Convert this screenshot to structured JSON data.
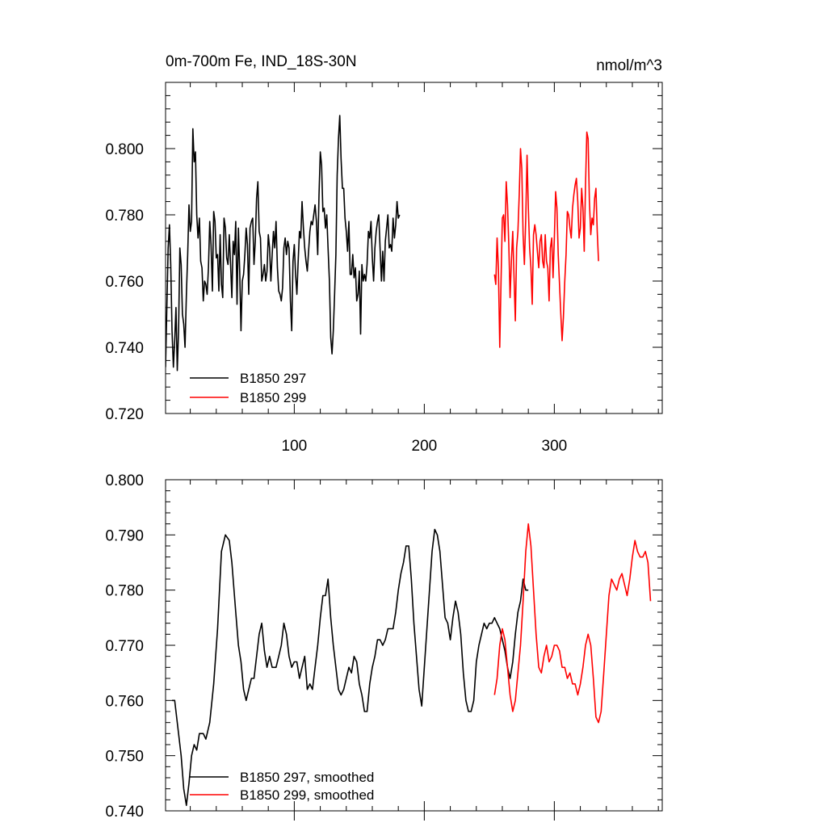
{
  "chart_data": [
    {
      "type": "line",
      "title": "0m-700m Fe, IND_18S-30N",
      "units": "nmol/m^3",
      "xlim": [
        1,
        383
      ],
      "ylim": [
        0.72,
        0.82
      ],
      "x_ticks": [
        100,
        200,
        300
      ],
      "x_tick_labels": [
        "100",
        "200",
        "300"
      ],
      "y_ticks": [
        0.72,
        0.74,
        0.76,
        0.78,
        0.8
      ],
      "y_tick_labels": [
        "0.720",
        "0.740",
        "0.760",
        "0.780",
        "0.800"
      ],
      "legend_position": "bottom-left",
      "series": [
        {
          "name": "B1850 297",
          "color": "#000000",
          "x_start": 1,
          "values": [
            0.734,
            0.752,
            0.77,
            0.777,
            0.765,
            0.745,
            0.734,
            0.742,
            0.752,
            0.733,
            0.745,
            0.77,
            0.765,
            0.75,
            0.747,
            0.74,
            0.756,
            0.768,
            0.783,
            0.775,
            0.778,
            0.806,
            0.796,
            0.799,
            0.78,
            0.773,
            0.779,
            0.766,
            0.764,
            0.754,
            0.76,
            0.759,
            0.756,
            0.764,
            0.778,
            0.771,
            0.757,
            0.781,
            0.778,
            0.767,
            0.768,
            0.757,
            0.774,
            0.759,
            0.755,
            0.779,
            0.776,
            0.767,
            0.765,
            0.774,
            0.765,
            0.755,
            0.772,
            0.768,
            0.778,
            0.753,
            0.776,
            0.763,
            0.745,
            0.76,
            0.762,
            0.768,
            0.776,
            0.771,
            0.756,
            0.776,
            0.778,
            0.779,
            0.765,
            0.772,
            0.785,
            0.79,
            0.775,
            0.773,
            0.76,
            0.762,
            0.765,
            0.76,
            0.763,
            0.774,
            0.77,
            0.76,
            0.768,
            0.775,
            0.77,
            0.778,
            0.764,
            0.757,
            0.756,
            0.754,
            0.758,
            0.77,
            0.773,
            0.768,
            0.772,
            0.77,
            0.754,
            0.745,
            0.766,
            0.771,
            0.762,
            0.756,
            0.766,
            0.775,
            0.773,
            0.784,
            0.776,
            0.77,
            0.766,
            0.763,
            0.769,
            0.775,
            0.778,
            0.777,
            0.78,
            0.783,
            0.778,
            0.768,
            0.786,
            0.799,
            0.795,
            0.781,
            0.782,
            0.776,
            0.78,
            0.77,
            0.76,
            0.743,
            0.738,
            0.745,
            0.756,
            0.768,
            0.792,
            0.803,
            0.81,
            0.797,
            0.788,
            0.788,
            0.779,
            0.775,
            0.769,
            0.778,
            0.762,
            0.762,
            0.768,
            0.761,
            0.764,
            0.754,
            0.756,
            0.763,
            0.744,
            0.765,
            0.76,
            0.762,
            0.76,
            0.765,
            0.775,
            0.773,
            0.778,
            0.767,
            0.76,
            0.77,
            0.775,
            0.778,
            0.78,
            0.77,
            0.76,
            0.769,
            0.76,
            0.772,
            0.776,
            0.78,
            0.77,
            0.771,
            0.769,
            0.779,
            0.773,
            0.777,
            0.784,
            0.779,
            0.78
          ]
        },
        {
          "name": "B1850 299",
          "color": "#ff0000",
          "x_start": 254,
          "values": [
            0.762,
            0.759,
            0.773,
            0.764,
            0.74,
            0.76,
            0.779,
            0.78,
            0.772,
            0.79,
            0.783,
            0.771,
            0.755,
            0.766,
            0.775,
            0.761,
            0.748,
            0.77,
            0.775,
            0.786,
            0.8,
            0.794,
            0.774,
            0.765,
            0.779,
            0.798,
            0.782,
            0.77,
            0.764,
            0.753,
            0.774,
            0.777,
            0.774,
            0.769,
            0.764,
            0.772,
            0.774,
            0.766,
            0.764,
            0.774,
            0.766,
            0.764,
            0.754,
            0.77,
            0.773,
            0.761,
            0.773,
            0.787,
            0.782,
            0.768,
            0.759,
            0.75,
            0.742,
            0.749,
            0.76,
            0.768,
            0.781,
            0.78,
            0.776,
            0.773,
            0.782,
            0.786,
            0.789,
            0.791,
            0.784,
            0.773,
            0.776,
            0.788,
            0.782,
            0.769,
            0.789,
            0.805,
            0.803,
            0.784,
            0.774,
            0.779,
            0.777,
            0.785,
            0.788,
            0.775,
            0.766
          ]
        }
      ]
    },
    {
      "type": "line",
      "title": "",
      "xlim": [
        1,
        383
      ],
      "ylim": [
        0.74,
        0.8
      ],
      "x_ticks": [
        100,
        200,
        300
      ],
      "y_ticks": [
        0.74,
        0.75,
        0.76,
        0.77,
        0.78,
        0.79,
        0.8
      ],
      "y_tick_labels": [
        "0.740",
        "0.750",
        "0.760",
        "0.770",
        "0.780",
        "0.790",
        "0.800"
      ],
      "legend_position": "bottom-left",
      "series": [
        {
          "name": "B1850 297, smoothed",
          "color": "#000000",
          "points": [
            [
              6,
              0.76
            ],
            [
              8,
              0.76
            ],
            [
              10,
              0.756
            ],
            [
              13,
              0.75
            ],
            [
              15,
              0.744
            ],
            [
              17,
              0.741
            ],
            [
              19,
              0.745
            ],
            [
              21,
              0.75
            ],
            [
              23,
              0.752
            ],
            [
              25,
              0.751
            ],
            [
              27,
              0.754
            ],
            [
              30,
              0.754
            ],
            [
              32,
              0.753
            ],
            [
              35,
              0.756
            ],
            [
              38,
              0.763
            ],
            [
              41,
              0.773
            ],
            [
              44,
              0.787
            ],
            [
              47,
              0.79
            ],
            [
              50,
              0.789
            ],
            [
              52,
              0.785
            ],
            [
              55,
              0.776
            ],
            [
              57,
              0.77
            ],
            [
              59,
              0.767
            ],
            [
              61,
              0.762
            ],
            [
              63,
              0.76
            ],
            [
              65,
              0.762
            ],
            [
              67,
              0.764
            ],
            [
              69,
              0.764
            ],
            [
              71,
              0.768
            ],
            [
              73,
              0.772
            ],
            [
              75,
              0.774
            ],
            [
              77,
              0.769
            ],
            [
              79,
              0.766
            ],
            [
              81,
              0.768
            ],
            [
              83,
              0.766
            ],
            [
              86,
              0.766
            ],
            [
              88,
              0.768
            ],
            [
              90,
              0.77
            ],
            [
              92,
              0.774
            ],
            [
              94,
              0.772
            ],
            [
              96,
              0.768
            ],
            [
              98,
              0.766
            ],
            [
              100,
              0.767
            ],
            [
              102,
              0.767
            ],
            [
              104,
              0.764
            ],
            [
              106,
              0.766
            ],
            [
              108,
              0.768
            ],
            [
              110,
              0.762
            ],
            [
              112,
              0.763
            ],
            [
              114,
              0.762
            ],
            [
              116,
              0.766
            ],
            [
              118,
              0.77
            ],
            [
              120,
              0.775
            ],
            [
              122,
              0.779
            ],
            [
              124,
              0.779
            ],
            [
              126,
              0.782
            ],
            [
              128,
              0.775
            ],
            [
              130,
              0.77
            ],
            [
              132,
              0.766
            ],
            [
              134,
              0.762
            ],
            [
              136,
              0.761
            ],
            [
              138,
              0.762
            ],
            [
              140,
              0.764
            ],
            [
              142,
              0.766
            ],
            [
              144,
              0.765
            ],
            [
              146,
              0.768
            ],
            [
              148,
              0.767
            ],
            [
              150,
              0.763
            ],
            [
              152,
              0.761
            ],
            [
              154,
              0.758
            ],
            [
              156,
              0.758
            ],
            [
              158,
              0.763
            ],
            [
              160,
              0.766
            ],
            [
              162,
              0.768
            ],
            [
              164,
              0.771
            ],
            [
              166,
              0.771
            ],
            [
              168,
              0.77
            ],
            [
              170,
              0.771
            ],
            [
              172,
              0.773
            ],
            [
              174,
              0.773
            ],
            [
              176,
              0.773
            ],
            [
              178,
              0.776
            ],
            [
              180,
              0.78
            ],
            [
              182,
              0.783
            ],
            [
              184,
              0.785
            ],
            [
              186,
              0.788
            ],
            [
              188,
              0.788
            ],
            [
              190,
              0.782
            ],
            [
              192,
              0.774
            ],
            [
              194,
              0.768
            ],
            [
              196,
              0.762
            ],
            [
              198,
              0.759
            ],
            [
              200,
              0.766
            ],
            [
              202,
              0.773
            ],
            [
              204,
              0.78
            ],
            [
              206,
              0.787
            ],
            [
              208,
              0.791
            ],
            [
              210,
              0.79
            ],
            [
              212,
              0.787
            ],
            [
              214,
              0.781
            ],
            [
              216,
              0.775
            ],
            [
              218,
              0.774
            ],
            [
              220,
              0.771
            ],
            [
              222,
              0.775
            ],
            [
              224,
              0.778
            ],
            [
              226,
              0.776
            ],
            [
              228,
              0.772
            ],
            [
              230,
              0.765
            ],
            [
              232,
              0.76
            ],
            [
              234,
              0.758
            ],
            [
              236,
              0.758
            ],
            [
              238,
              0.76
            ],
            [
              240,
              0.767
            ],
            [
              242,
              0.77
            ],
            [
              244,
              0.772
            ],
            [
              246,
              0.774
            ],
            [
              248,
              0.773
            ],
            [
              250,
              0.774
            ],
            [
              252,
              0.774
            ],
            [
              254,
              0.775
            ],
            [
              256,
              0.774
            ],
            [
              258,
              0.773
            ],
            [
              260,
              0.771
            ],
            [
              262,
              0.769
            ],
            [
              264,
              0.766
            ],
            [
              266,
              0.764
            ],
            [
              268,
              0.767
            ],
            [
              270,
              0.772
            ],
            [
              272,
              0.776
            ],
            [
              274,
              0.778
            ],
            [
              276,
              0.782
            ],
            [
              278,
              0.78
            ],
            [
              280,
              0.78
            ]
          ]
        },
        {
          "name": "B1850 299, smoothed",
          "color": "#ff0000",
          "points": [
            [
              254,
              0.761
            ],
            [
              256,
              0.764
            ],
            [
              258,
              0.77
            ],
            [
              260,
              0.773
            ],
            [
              262,
              0.771
            ],
            [
              264,
              0.766
            ],
            [
              266,
              0.761
            ],
            [
              268,
              0.758
            ],
            [
              270,
              0.76
            ],
            [
              272,
              0.765
            ],
            [
              274,
              0.77
            ],
            [
              276,
              0.778
            ],
            [
              278,
              0.787
            ],
            [
              280,
              0.792
            ],
            [
              282,
              0.788
            ],
            [
              284,
              0.78
            ],
            [
              286,
              0.772
            ],
            [
              288,
              0.766
            ],
            [
              290,
              0.765
            ],
            [
              292,
              0.768
            ],
            [
              294,
              0.77
            ],
            [
              296,
              0.767
            ],
            [
              298,
              0.768
            ],
            [
              300,
              0.77
            ],
            [
              302,
              0.77
            ],
            [
              304,
              0.769
            ],
            [
              306,
              0.766
            ],
            [
              308,
              0.766
            ],
            [
              310,
              0.764
            ],
            [
              312,
              0.765
            ],
            [
              314,
              0.763
            ],
            [
              316,
              0.763
            ],
            [
              318,
              0.761
            ],
            [
              320,
              0.763
            ],
            [
              322,
              0.766
            ],
            [
              324,
              0.77
            ],
            [
              326,
              0.772
            ],
            [
              328,
              0.77
            ],
            [
              330,
              0.764
            ],
            [
              332,
              0.757
            ],
            [
              334,
              0.756
            ],
            [
              336,
              0.758
            ],
            [
              338,
              0.765
            ],
            [
              340,
              0.772
            ],
            [
              342,
              0.779
            ],
            [
              344,
              0.782
            ],
            [
              346,
              0.781
            ],
            [
              348,
              0.78
            ],
            [
              350,
              0.782
            ],
            [
              352,
              0.783
            ],
            [
              354,
              0.781
            ],
            [
              356,
              0.779
            ],
            [
              358,
              0.782
            ],
            [
              360,
              0.786
            ],
            [
              362,
              0.789
            ],
            [
              364,
              0.787
            ],
            [
              366,
              0.786
            ],
            [
              368,
              0.786
            ],
            [
              370,
              0.787
            ],
            [
              372,
              0.785
            ],
            [
              374,
              0.778
            ]
          ]
        }
      ]
    }
  ]
}
